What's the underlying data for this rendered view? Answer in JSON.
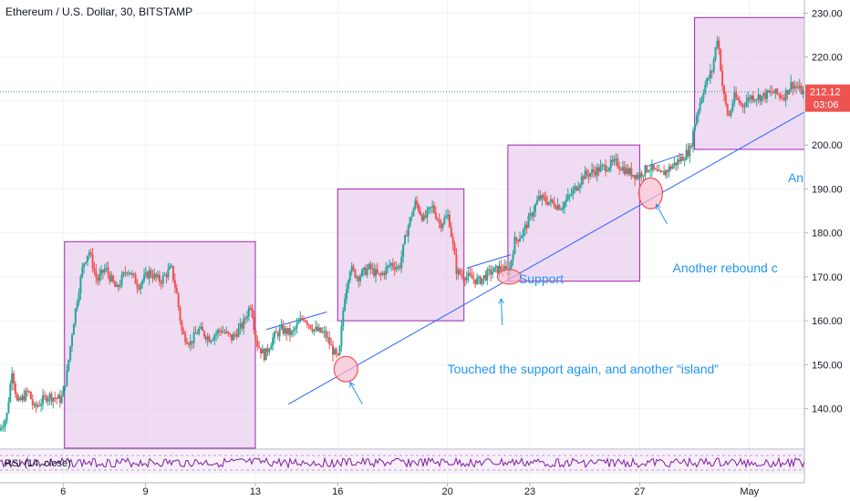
{
  "header": {
    "title": "Ethereum / U.S. Dollar, 30, BITSTAMP"
  },
  "colors": {
    "up": "#26a69a",
    "down": "#ef5350",
    "box_fill": "#e1bee7",
    "box_stroke": "#9c27b0",
    "trendline": "#2962ff",
    "annotation": "#2196f3",
    "rsi": "#7b1fa2",
    "price_line": "#26a69a",
    "price_tag": "#ef5350",
    "ellipse_stroke": "#ef5350",
    "ellipse_fill": "#f8bbd0"
  },
  "chart_data": {
    "type": "candlestick",
    "symbol": "Ethereum / U.S. Dollar",
    "interval": "30",
    "exchange": "BITSTAMP",
    "y_axis": {
      "range": [
        131,
        233
      ],
      "ticks": [
        140,
        150,
        160,
        170,
        180,
        190,
        200,
        210,
        220,
        230
      ],
      "tick_labels": [
        "140.00",
        "150.00",
        "160.00",
        "170.00",
        "180.00",
        "190.00",
        "200.00",
        "210.00",
        "220.00",
        "230.00"
      ]
    },
    "x_axis": {
      "range": [
        3.7,
        33.0
      ],
      "ticks": [
        6,
        9,
        13,
        16,
        20,
        23,
        27,
        31
      ],
      "tick_labels": [
        "6",
        "9",
        "13",
        "16",
        "20",
        "23",
        "27",
        "May"
      ]
    },
    "last_price": {
      "value": 212.12,
      "label": "212.12",
      "countdown": "03:06"
    },
    "price_path": [
      [
        3.7,
        135
      ],
      [
        4.0,
        138
      ],
      [
        4.2,
        149
      ],
      [
        4.4,
        141
      ],
      [
        4.8,
        144
      ],
      [
        5.0,
        140
      ],
      [
        5.5,
        143
      ],
      [
        6.0,
        142
      ],
      [
        6.2,
        148
      ],
      [
        6.4,
        158
      ],
      [
        6.6,
        166
      ],
      [
        6.8,
        173
      ],
      [
        7.0,
        176
      ],
      [
        7.3,
        169
      ],
      [
        7.6,
        172
      ],
      [
        8.0,
        167
      ],
      [
        8.4,
        172
      ],
      [
        8.8,
        168
      ],
      [
        9.2,
        171
      ],
      [
        9.6,
        169
      ],
      [
        10.0,
        172
      ],
      [
        10.2,
        166
      ],
      [
        10.4,
        157
      ],
      [
        10.7,
        155
      ],
      [
        11.0,
        158
      ],
      [
        11.4,
        156
      ],
      [
        11.8,
        158
      ],
      [
        12.2,
        156
      ],
      [
        12.6,
        159
      ],
      [
        12.9,
        164
      ],
      [
        13.1,
        155
      ],
      [
        13.4,
        152
      ],
      [
        13.7,
        156
      ],
      [
        14.0,
        158
      ],
      [
        14.4,
        157
      ],
      [
        14.8,
        161
      ],
      [
        15.2,
        158
      ],
      [
        15.6,
        157
      ],
      [
        15.9,
        153
      ],
      [
        16.1,
        151
      ],
      [
        16.3,
        165
      ],
      [
        16.5,
        172
      ],
      [
        16.8,
        170
      ],
      [
        17.2,
        172
      ],
      [
        17.6,
        170
      ],
      [
        18.0,
        173
      ],
      [
        18.3,
        172
      ],
      [
        18.6,
        181
      ],
      [
        18.9,
        187
      ],
      [
        19.2,
        183
      ],
      [
        19.5,
        186
      ],
      [
        19.8,
        182
      ],
      [
        20.1,
        184
      ],
      [
        20.4,
        171
      ],
      [
        20.8,
        170
      ],
      [
        21.2,
        169
      ],
      [
        21.6,
        171
      ],
      [
        22.0,
        172
      ],
      [
        22.3,
        171
      ],
      [
        22.5,
        178
      ],
      [
        22.8,
        180
      ],
      [
        23.1,
        184
      ],
      [
        23.4,
        188
      ],
      [
        23.8,
        187
      ],
      [
        24.2,
        186
      ],
      [
        24.6,
        189
      ],
      [
        25.0,
        193
      ],
      [
        25.4,
        194
      ],
      [
        25.8,
        195
      ],
      [
        26.2,
        196
      ],
      [
        26.6,
        194
      ],
      [
        27.0,
        193
      ],
      [
        27.4,
        195
      ],
      [
        27.8,
        193
      ],
      [
        28.2,
        195
      ],
      [
        28.6,
        197
      ],
      [
        28.9,
        199
      ],
      [
        29.1,
        206
      ],
      [
        29.4,
        213
      ],
      [
        29.7,
        217
      ],
      [
        29.9,
        225
      ],
      [
        30.1,
        212
      ],
      [
        30.3,
        206
      ],
      [
        30.5,
        211
      ],
      [
        30.8,
        209
      ],
      [
        31.1,
        211
      ],
      [
        31.5,
        211
      ],
      [
        31.9,
        212
      ],
      [
        32.3,
        211
      ],
      [
        32.6,
        214
      ],
      [
        33.0,
        212
      ]
    ],
    "annotations": [
      {
        "text": "Support"
      },
      {
        "text": "Touched the support again, and another “island”"
      },
      {
        "text": "Another rebound c"
      },
      {
        "text": "An"
      }
    ],
    "indicator": {
      "name": "RSI",
      "label": "RSI (14, close)"
    }
  }
}
